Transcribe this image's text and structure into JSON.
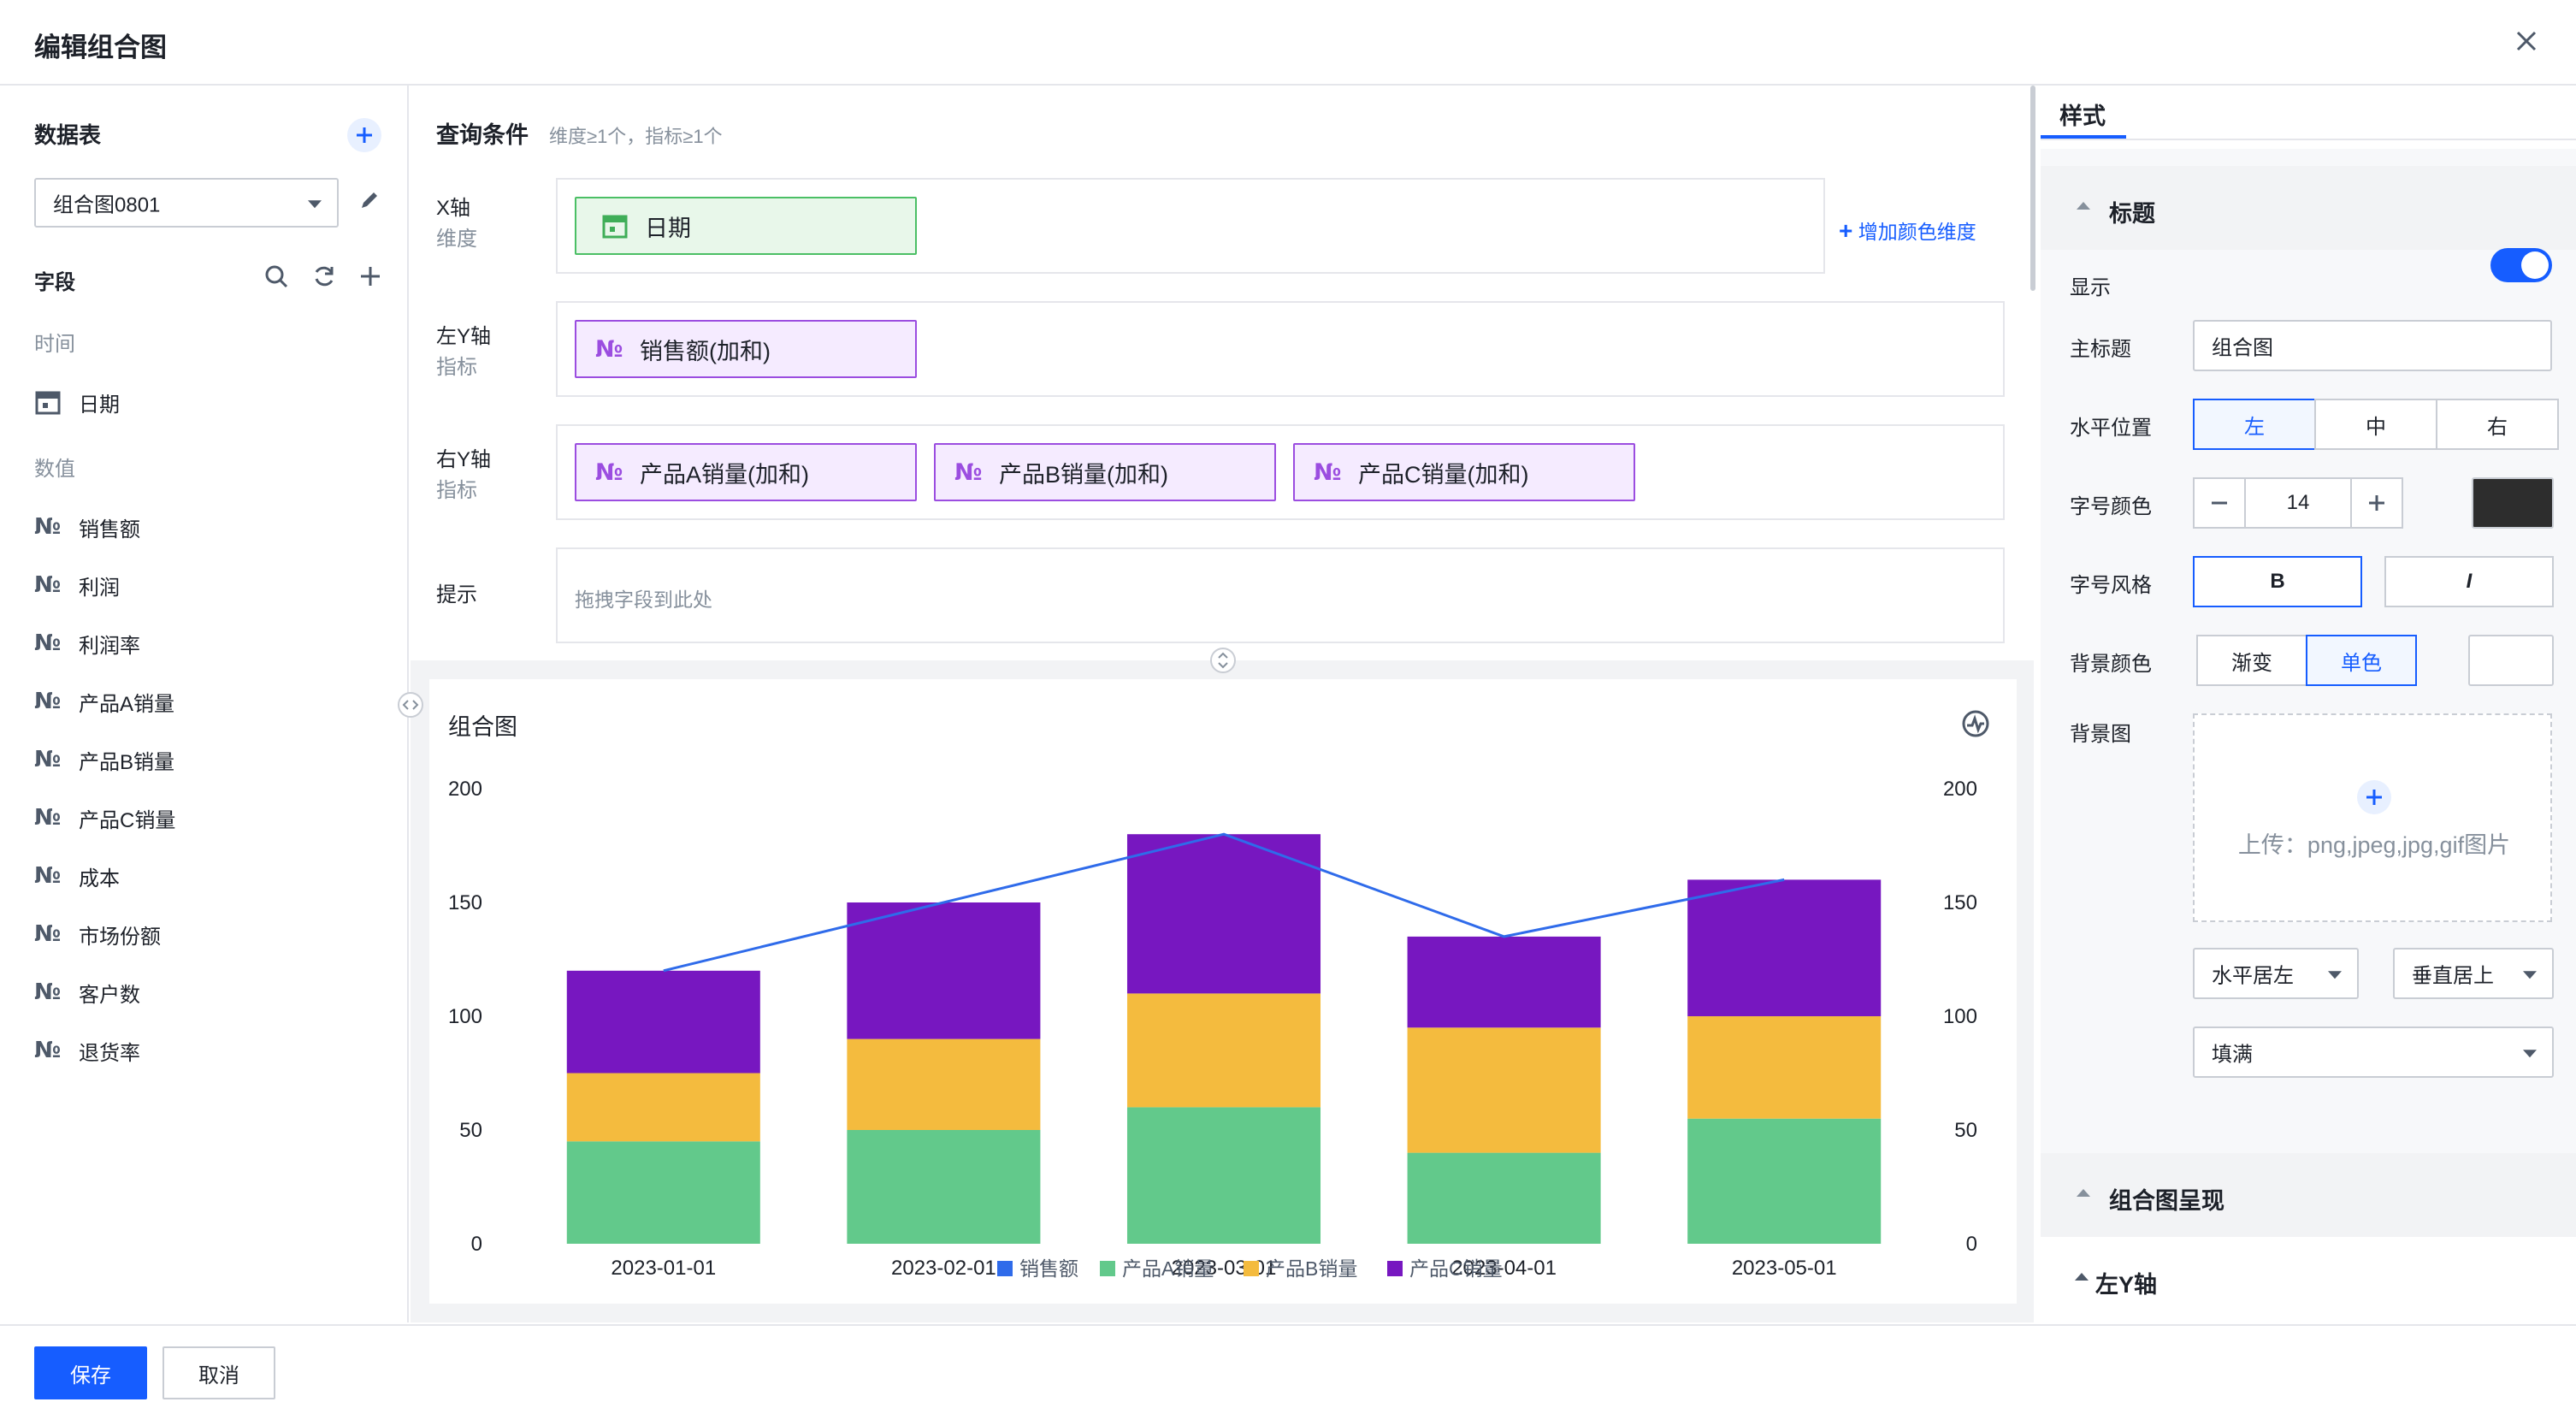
{
  "dialog": {
    "title": "编辑组合图"
  },
  "left": {
    "datatable_title": "数据表",
    "datatable_value": "组合图0801",
    "fields_title": "字段",
    "group_time": "时间",
    "group_number": "数值",
    "time_fields": [
      "日期"
    ],
    "number_fields": [
      "销售额",
      "利润",
      "利润率",
      "产品A销量",
      "产品B销量",
      "产品C销量",
      "成本",
      "市场份额",
      "客户数",
      "退货率"
    ],
    "num_icon": "№"
  },
  "query": {
    "title": "查询条件",
    "hint": "维度≥1个，指标≥1个",
    "x_axis": {
      "label": "X轴",
      "sub": "维度",
      "chip": "日期"
    },
    "left_y": {
      "label": "左Y轴",
      "sub": "指标",
      "chip": "销售额(加和)"
    },
    "right_y": {
      "label": "右Y轴",
      "sub": "指标",
      "chips": [
        "产品A销量(加和)",
        "产品B销量(加和)",
        "产品C销量(加和)"
      ]
    },
    "tip": {
      "label": "提示",
      "placeholder": "拖拽字段到此处"
    },
    "add_color": "增加颜色维度"
  },
  "chart_data": {
    "type": "bar",
    "title": "组合图",
    "categories": [
      "2023-01-01",
      "2023-02-01",
      "2023-03-01",
      "2023-04-01",
      "2023-05-01"
    ],
    "stacked": true,
    "series": [
      {
        "name": "销售额",
        "type": "line",
        "axis": "left",
        "color": "#2f6bea",
        "values": [
          120,
          150,
          180,
          135,
          160
        ]
      },
      {
        "name": "产品A销量",
        "type": "bar",
        "axis": "right",
        "color": "#62c98b",
        "values": [
          45,
          50,
          60,
          40,
          55
        ]
      },
      {
        "name": "产品B销量",
        "type": "bar",
        "axis": "right",
        "color": "#f4bb3e",
        "values": [
          30,
          40,
          50,
          55,
          45
        ]
      },
      {
        "name": "产品C销量",
        "type": "bar",
        "axis": "right",
        "color": "#7717c0",
        "values": [
          45,
          60,
          70,
          40,
          60
        ]
      }
    ],
    "ylim": [
      0,
      200
    ],
    "yticks": [
      0,
      50,
      100,
      150,
      200
    ],
    "y2lim": [
      0,
      200
    ],
    "y2ticks": [
      0,
      50,
      100,
      150,
      200
    ],
    "legend": "bottom-center",
    "grid": false
  },
  "style": {
    "tab": "样式",
    "title_section": "标题",
    "show_label": "显示",
    "show_on": true,
    "main_title_label": "主标题",
    "main_title_value": "组合图",
    "hpos_label": "水平位置",
    "hpos_options": [
      "左",
      "中",
      "右"
    ],
    "font_color_label": "字号颜色",
    "font_size": "14",
    "font_color": "#2d2d2d",
    "font_style_label": "字号风格",
    "bold": "B",
    "italic": "I",
    "bg_color_label": "背景颜色",
    "bg_modes": [
      "渐变",
      "单色"
    ],
    "bg_color": "#ffffff",
    "bg_image_label": "背景图",
    "upload_text": "上传：png,jpeg,jpg,gif图片",
    "h_align": "水平居左",
    "v_align": "垂直居上",
    "fill": "填满",
    "combo_section": "组合图呈现",
    "left_y_section": "左Y轴"
  },
  "footer": {
    "save": "保存",
    "cancel": "取消"
  }
}
